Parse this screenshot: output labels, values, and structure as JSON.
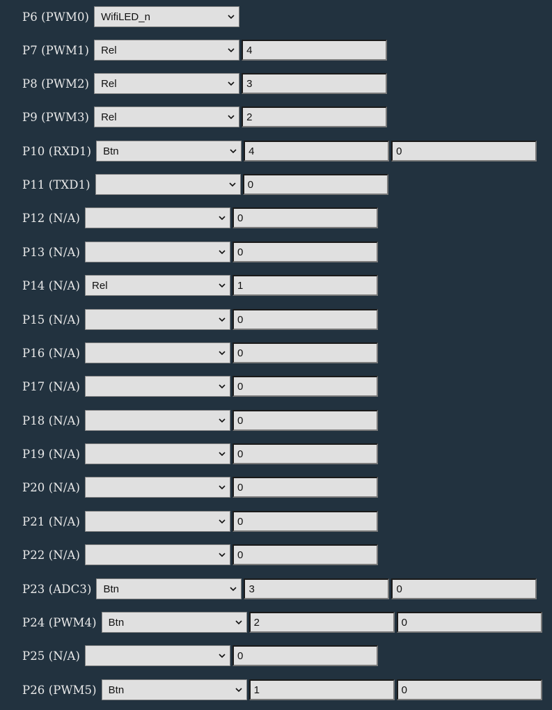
{
  "pins": [
    {
      "label": "P6 (PWM0)",
      "role": "WifiLED_n",
      "fields": []
    },
    {
      "label": "P7 (PWM1)",
      "role": "Rel",
      "fields": [
        "4"
      ]
    },
    {
      "label": "P8 (PWM2)",
      "role": "Rel",
      "fields": [
        "3"
      ]
    },
    {
      "label": "P9 (PWM3)",
      "role": "Rel",
      "fields": [
        "2"
      ]
    },
    {
      "label": "P10 (RXD1)",
      "role": "Btn",
      "fields": [
        "4",
        "0"
      ]
    },
    {
      "label": "P11 (TXD1)",
      "role": "",
      "fields": [
        "0"
      ]
    },
    {
      "label": "P12 (N/A)",
      "role": "",
      "fields": [
        "0"
      ]
    },
    {
      "label": "P13 (N/A)",
      "role": "",
      "fields": [
        "0"
      ]
    },
    {
      "label": "P14 (N/A)",
      "role": "Rel",
      "fields": [
        "1"
      ]
    },
    {
      "label": "P15 (N/A)",
      "role": "",
      "fields": [
        "0"
      ]
    },
    {
      "label": "P16 (N/A)",
      "role": "",
      "fields": [
        "0"
      ]
    },
    {
      "label": "P17 (N/A)",
      "role": "",
      "fields": [
        "0"
      ]
    },
    {
      "label": "P18 (N/A)",
      "role": "",
      "fields": [
        "0"
      ]
    },
    {
      "label": "P19 (N/A)",
      "role": "",
      "fields": [
        "0"
      ]
    },
    {
      "label": "P20 (N/A)",
      "role": "",
      "fields": [
        "0"
      ]
    },
    {
      "label": "P21 (N/A)",
      "role": "",
      "fields": [
        "0"
      ]
    },
    {
      "label": "P22 (N/A)",
      "role": "",
      "fields": [
        "0"
      ]
    },
    {
      "label": "P23 (ADC3)",
      "role": "Btn",
      "fields": [
        "3",
        "0"
      ]
    },
    {
      "label": "P24 (PWM4)",
      "role": "Btn",
      "fields": [
        "2",
        "0"
      ]
    },
    {
      "label": "P25 (N/A)",
      "role": "",
      "fields": [
        "0"
      ]
    },
    {
      "label": "P26 (PWM5)",
      "role": "Btn",
      "fields": [
        "1",
        "0"
      ]
    }
  ],
  "icons": {
    "dropdown": "chevron-down-icon"
  },
  "colors": {
    "background": "#22323f",
    "control": "#e0e0e0",
    "label_text": "#eaeaea"
  }
}
